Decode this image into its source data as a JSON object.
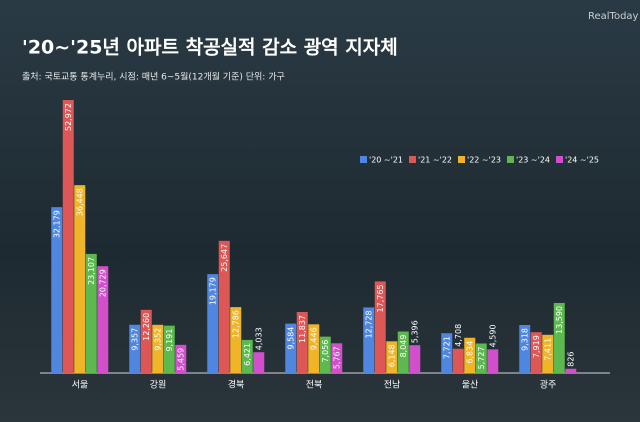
{
  "brand": "RealToday",
  "chart_data": {
    "type": "bar",
    "title": "'20~'25년 아파트 착공실적 감소 광역 지자체",
    "subtitle": "출처: 국토교통 통계누리, 시점: 매년 6~5월(12개월 기준)  단위: 가구",
    "categories": [
      "서울",
      "강원",
      "경북",
      "전북",
      "전남",
      "울산",
      "광주"
    ],
    "series": [
      {
        "name": "'20 ~'21",
        "color": "#4f86e0",
        "values": [
          32179,
          9357,
          19179,
          9584,
          12728,
          7721,
          9318
        ],
        "value_labels": [
          "32,179",
          "9,357",
          "19,179",
          "9,584",
          "12,728",
          "7,721",
          "9,318"
        ]
      },
      {
        "name": "'21 ~'22",
        "color": "#de5757",
        "values": [
          52972,
          12260,
          25647,
          11837,
          17765,
          4708,
          7919
        ],
        "value_labels": [
          "52,972",
          "12,260",
          "25,647",
          "11,837",
          "17,765",
          "4,708",
          "7,919"
        ]
      },
      {
        "name": "'22 ~'23",
        "color": "#f0b428",
        "values": [
          36448,
          9352,
          12786,
          9446,
          6148,
          6834,
          7411
        ],
        "value_labels": [
          "36,448",
          "9,352",
          "12,786",
          "9,446",
          "6,148",
          "6,834",
          "7,411"
        ]
      },
      {
        "name": "'23 ~'24",
        "color": "#5cb84f",
        "values": [
          23107,
          9191,
          6421,
          7056,
          8049,
          5727,
          13590
        ],
        "value_labels": [
          "23,107",
          "9,191",
          "6,421",
          "7,056",
          "8,049",
          "5,727",
          "13,590"
        ]
      },
      {
        "name": "'24 ~'25",
        "color": "#d14fcb",
        "values": [
          20729,
          5459,
          4033,
          5767,
          5396,
          4590,
          826
        ],
        "value_labels": [
          "20,729",
          "5,459",
          "4,033",
          "5,767",
          "5,396",
          "4,590",
          "826"
        ]
      }
    ]
  }
}
